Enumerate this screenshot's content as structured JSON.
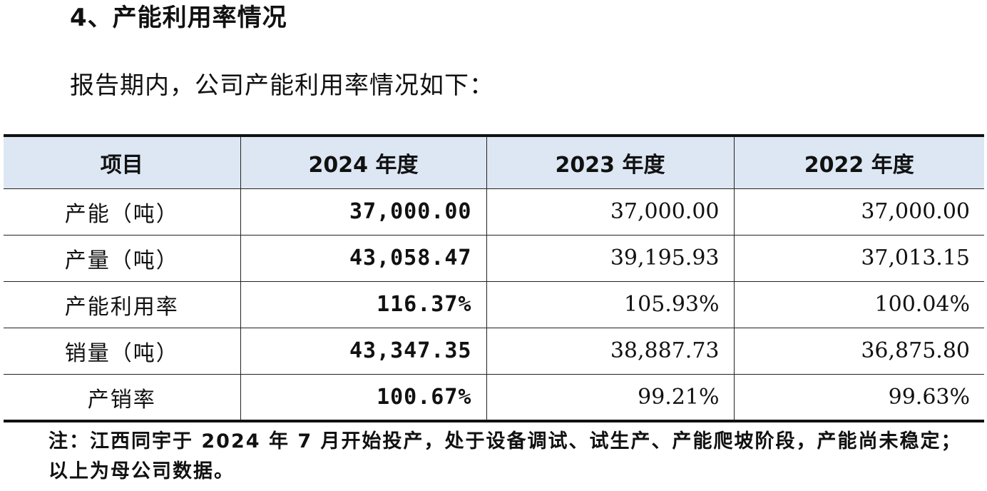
{
  "heading": "4、产能利用率情况",
  "intro": "报告期内，公司产能利用率情况如下：",
  "table": {
    "headers": [
      "项目",
      "2024 年度",
      "2023 年度",
      "2022 年度"
    ],
    "rows": [
      {
        "label": "产能（吨）",
        "v2024": "37,000.00",
        "v2023": "37,000.00",
        "v2022": "37,000.00"
      },
      {
        "label": "产量（吨）",
        "v2024": "43,058.47",
        "v2023": "39,195.93",
        "v2022": "37,013.15"
      },
      {
        "label": "产能利用率",
        "v2024": "116.37%",
        "v2023": "105.93%",
        "v2022": "100.04%"
      },
      {
        "label": "销量（吨）",
        "v2024": "43,347.35",
        "v2023": "38,887.73",
        "v2022": "36,875.80"
      },
      {
        "label": "产销率",
        "v2024": "100.67%",
        "v2023": "99.21%",
        "v2022": "99.63%"
      }
    ]
  },
  "note": "注：江西同宇于 2024 年 7 月开始投产，处于设备调试、试生产、产能爬坡阶段，产能尚未稳定；以上为母公司数据。"
}
